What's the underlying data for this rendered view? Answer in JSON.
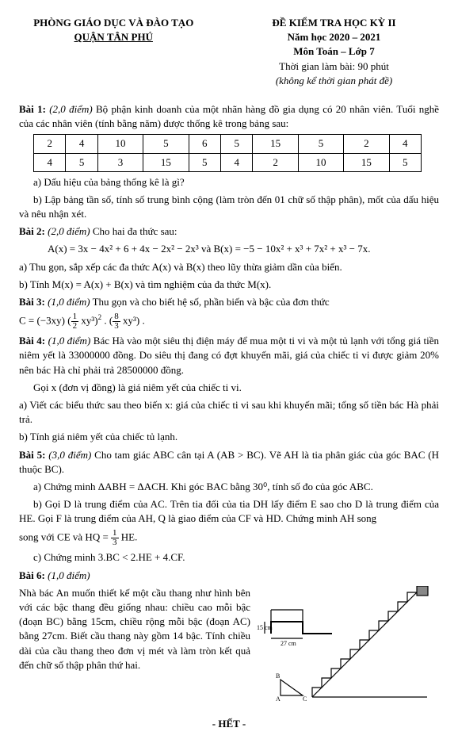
{
  "header": {
    "left_line1": "PHÒNG GIÁO DỤC VÀ ĐÀO TẠO",
    "left_line2": "QUẬN TÂN PHÚ",
    "right_line1": "ĐỀ KIỂM TRA HỌC KỲ II",
    "right_line2": "Năm học 2020 – 2021",
    "right_line3": "Môn Toán – Lớp 7",
    "right_line4": "Thời gian làm bài: 90 phút",
    "right_line5": "(không kể thời gian phát đề)"
  },
  "bai1": {
    "title": "Bài 1:",
    "points": "(2,0 điểm)",
    "intro": " Bộ phận kinh doanh của một nhãn hàng đồ gia dụng có 20 nhân viên. Tuổi nghề của các nhân viên (tính bằng năm) được thống kê trong bảng sau:",
    "table": {
      "rows": [
        [
          "2",
          "4",
          "10",
          "5",
          "6",
          "5",
          "15",
          "5",
          "2",
          "4"
        ],
        [
          "4",
          "5",
          "3",
          "15",
          "5",
          "4",
          "2",
          "10",
          "15",
          "5"
        ]
      ]
    },
    "a": "a) Dấu hiệu của bảng thống kê là gì?",
    "b": "b) Lập bảng tần số, tính số trung bình cộng (làm tròn đến 01 chữ số thập phân), mốt của dấu hiệu và nêu nhận xét."
  },
  "bai2": {
    "title": "Bài 2:",
    "points": "(2,0 điểm)",
    "intro": " Cho hai đa thức sau:",
    "formula": "A(x) = 3x − 4x² + 6 + 4x − 2x² − 2x³  và  B(x) = −5 − 10x² + x³ + 7x² + x³ − 7x.",
    "a": "a) Thu gọn, sắp xếp các đa thức A(x) và B(x) theo lũy thừa giảm dần của biến.",
    "b": "b) Tính M(x) = A(x) + B(x) và tìm nghiệm của đa thức M(x)."
  },
  "bai3": {
    "title": "Bài 3:",
    "points": "(1,0 điểm)",
    "text": " Thu gọn và cho biết hệ số, phần biến và bậc của đơn thức",
    "pre": "C = (−3xy)",
    "f1n": "1",
    "f1d": "2",
    "mid1": "xy³",
    "exp1": "2",
    "dot": ".",
    "f2n": "8",
    "f2d": "3",
    "mid2": "xy³",
    "post": "."
  },
  "bai4": {
    "title": "Bài 4:",
    "points": "(1,0 điểm)",
    "p1": " Bác Hà vào một siêu thị điện máy để mua một ti vi và một tủ lạnh với tổng giá tiền niêm yết là 33000000 đồng. Do siêu thị đang có đợt khuyến mãi, giá của chiếc ti vi được giảm 20% nên bác Hà chỉ phải trả 28500000 đồng.",
    "p2": "Gọi x (đơn vị đồng) là giá niêm yết của chiếc ti vi.",
    "a": "a) Viết các biểu thức sau theo biến x: giá của chiếc ti vi sau khi khuyến mãi; tổng số tiền bác Hà phải trả.",
    "b": "b) Tính giá niêm yết của chiếc tủ lạnh."
  },
  "bai5": {
    "title": "Bài 5:",
    "points": "(3,0 điểm)",
    "intro": " Cho tam giác ABC cân tại A (AB > BC). Vẽ AH là tia phân giác của góc BAC (H thuộc BC).",
    "a": "a) Chứng minh ΔABH = ΔACH. Khi góc BAC bằng 30⁰, tính số đo của góc ABC.",
    "b": "b) Gọi D là trung điểm của AC. Trên tia đối của tia DH lấy điểm E sao cho D là trung điểm của HE. Gọi F là trung điểm của AH, Q là giao điểm của CF và HD. Chứng minh AH song",
    "b2_pre": "song với CE và HQ = ",
    "b2_n": "1",
    "b2_d": "3",
    "b2_post": "HE.",
    "c": "c) Chứng minh 3.BC < 2.HE + 4.CF."
  },
  "bai6": {
    "title": "Bài 6:",
    "points": "(1,0 điểm)",
    "text": "Nhà bác An muốn thiết kế một cầu thang như hình bên với các bậc thang đều giống nhau: chiều cao mỗi bậc (đoạn BC) bằng 15cm, chiều rộng mỗi bậc (đoạn AC) bằng 27cm. Biết cầu thang này gồm 14 bậc. Tính chiều dài của cầu thang theo đơn vị mét và làm tròn kết quả đến chữ số thập phân thứ hai.",
    "fig": {
      "h_label": "15 cm",
      "w_label": "27 cm",
      "pA": "A",
      "pB": "B",
      "pC": "C"
    }
  },
  "footer": "- HẾT -"
}
